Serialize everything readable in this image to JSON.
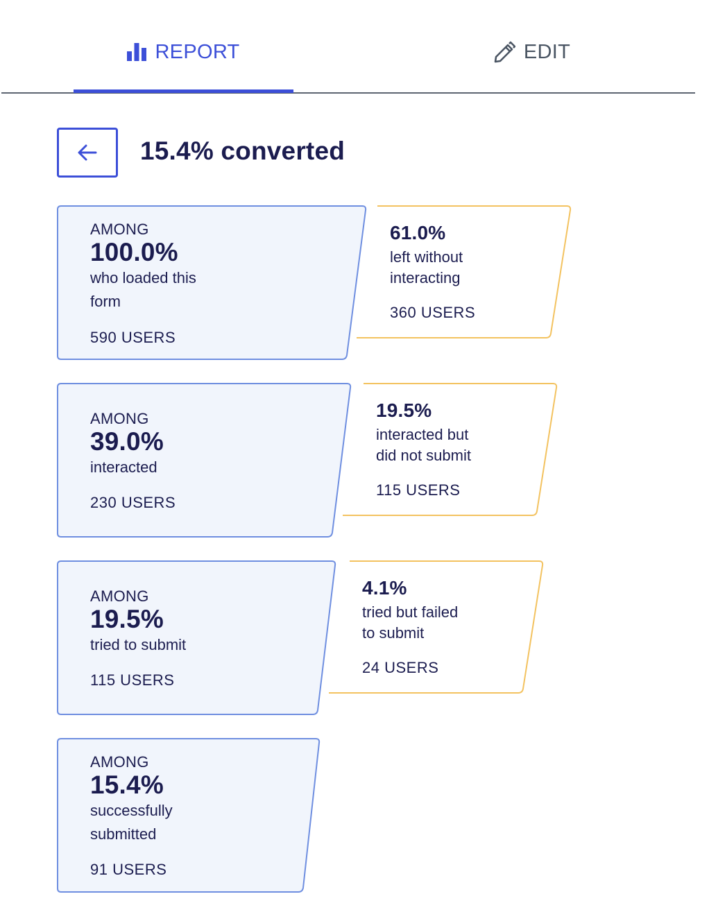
{
  "tabs": {
    "report": {
      "label": "REPORT",
      "icon": "bar-chart-icon",
      "active": true
    },
    "edit": {
      "label": "EDIT",
      "icon": "pencil-icon",
      "active": false
    }
  },
  "header": {
    "back_icon": "arrow-left-icon",
    "title": "15.4% converted"
  },
  "colors": {
    "accent": "#3c4fd8",
    "stage_border": "#6e8ee0",
    "stage_fill": "#f1f5fc",
    "drop_border": "#f3c25f",
    "text": "#1b1c4f"
  },
  "funnel": {
    "stages": [
      {
        "prefix": "AMONG",
        "percent": "100.0%",
        "description_lines": [
          "who loaded this",
          "form"
        ],
        "users": "590 USERS"
      },
      {
        "prefix": "AMONG",
        "percent": "39.0%",
        "description_lines": [
          "interacted"
        ],
        "users": "230 USERS"
      },
      {
        "prefix": "AMONG",
        "percent": "19.5%",
        "description_lines": [
          "tried to submit"
        ],
        "users": "115 USERS"
      },
      {
        "prefix": "AMONG",
        "percent": "15.4%",
        "description_lines": [
          "successfully",
          "submitted"
        ],
        "users": "91 USERS"
      }
    ],
    "dropoffs": [
      {
        "percent": "61.0%",
        "description_lines": [
          "left without",
          "interacting"
        ],
        "users": "360 USERS"
      },
      {
        "percent": "19.5%",
        "description_lines": [
          "interacted but",
          "did not submit"
        ],
        "users": "115 USERS"
      },
      {
        "percent": "4.1%",
        "description_lines": [
          "tried but failed",
          "to submit"
        ],
        "users": "24 USERS"
      }
    ]
  }
}
